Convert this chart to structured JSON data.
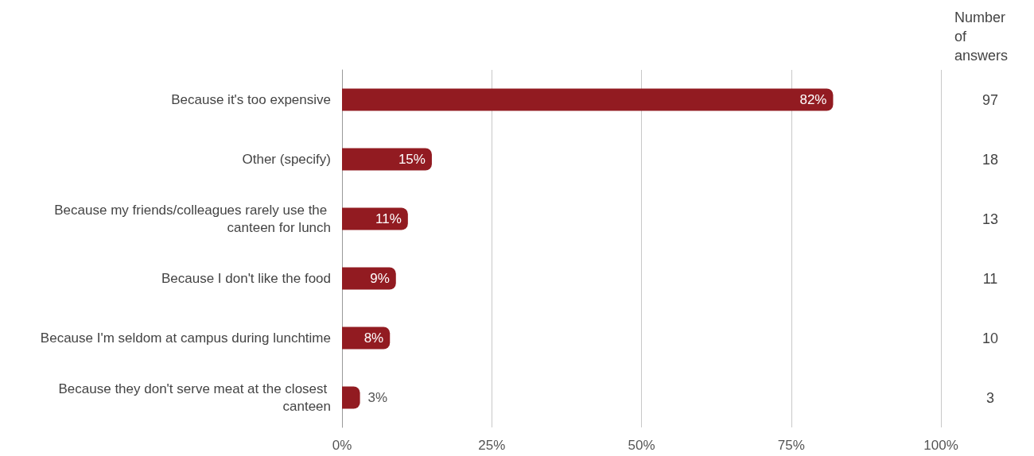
{
  "chart_data": {
    "type": "bar",
    "orientation": "horizontal",
    "categories": [
      "Because it's too expensive",
      "Other (specify)",
      "Because my friends/colleagues rarely use the canteen for lunch",
      "Because I don't like the food",
      "Because I'm seldom at campus during lunchtime",
      "Because they don't serve meat at the closest canteen"
    ],
    "values": [
      82,
      15,
      11,
      9,
      8,
      3
    ],
    "value_labels": [
      "82%",
      "15%",
      "11%",
      "9%",
      "8%",
      "3%"
    ],
    "color": "#921b21",
    "xlim": [
      0,
      100
    ],
    "xticks": [
      {
        "value": 0,
        "label": "0%"
      },
      {
        "value": 25,
        "label": "25%"
      },
      {
        "value": 50,
        "label": "50%"
      },
      {
        "value": 75,
        "label": "75%"
      },
      {
        "value": 100,
        "label": "100%"
      }
    ],
    "grid": "x",
    "annotations": [
      "Number of answers",
      "97",
      "18",
      "13",
      "11",
      "10",
      "3"
    ]
  }
}
